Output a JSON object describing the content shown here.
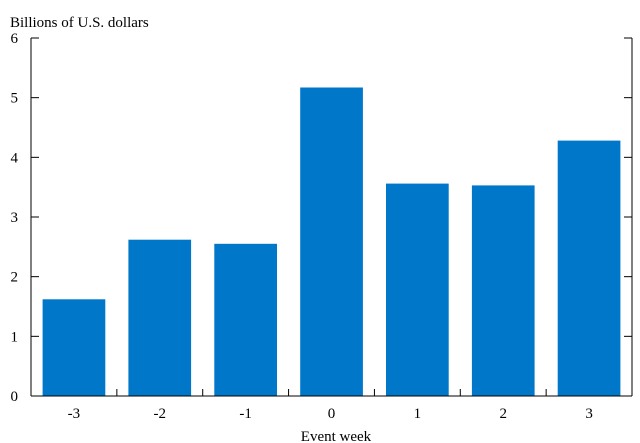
{
  "chart_data": {
    "type": "bar",
    "categories": [
      "-3",
      "-2",
      "-1",
      "0",
      "1",
      "2",
      "3"
    ],
    "values": [
      1.62,
      2.62,
      2.55,
      5.17,
      3.56,
      3.53,
      4.28
    ],
    "ylabel": "Billions of U.S. dollars",
    "xlabel": "Event week",
    "ylim": [
      0,
      6
    ],
    "yticks": [
      "0",
      "1",
      "2",
      "3",
      "4",
      "5",
      "6"
    ],
    "grid": false,
    "bar_color": "#0077c8"
  }
}
